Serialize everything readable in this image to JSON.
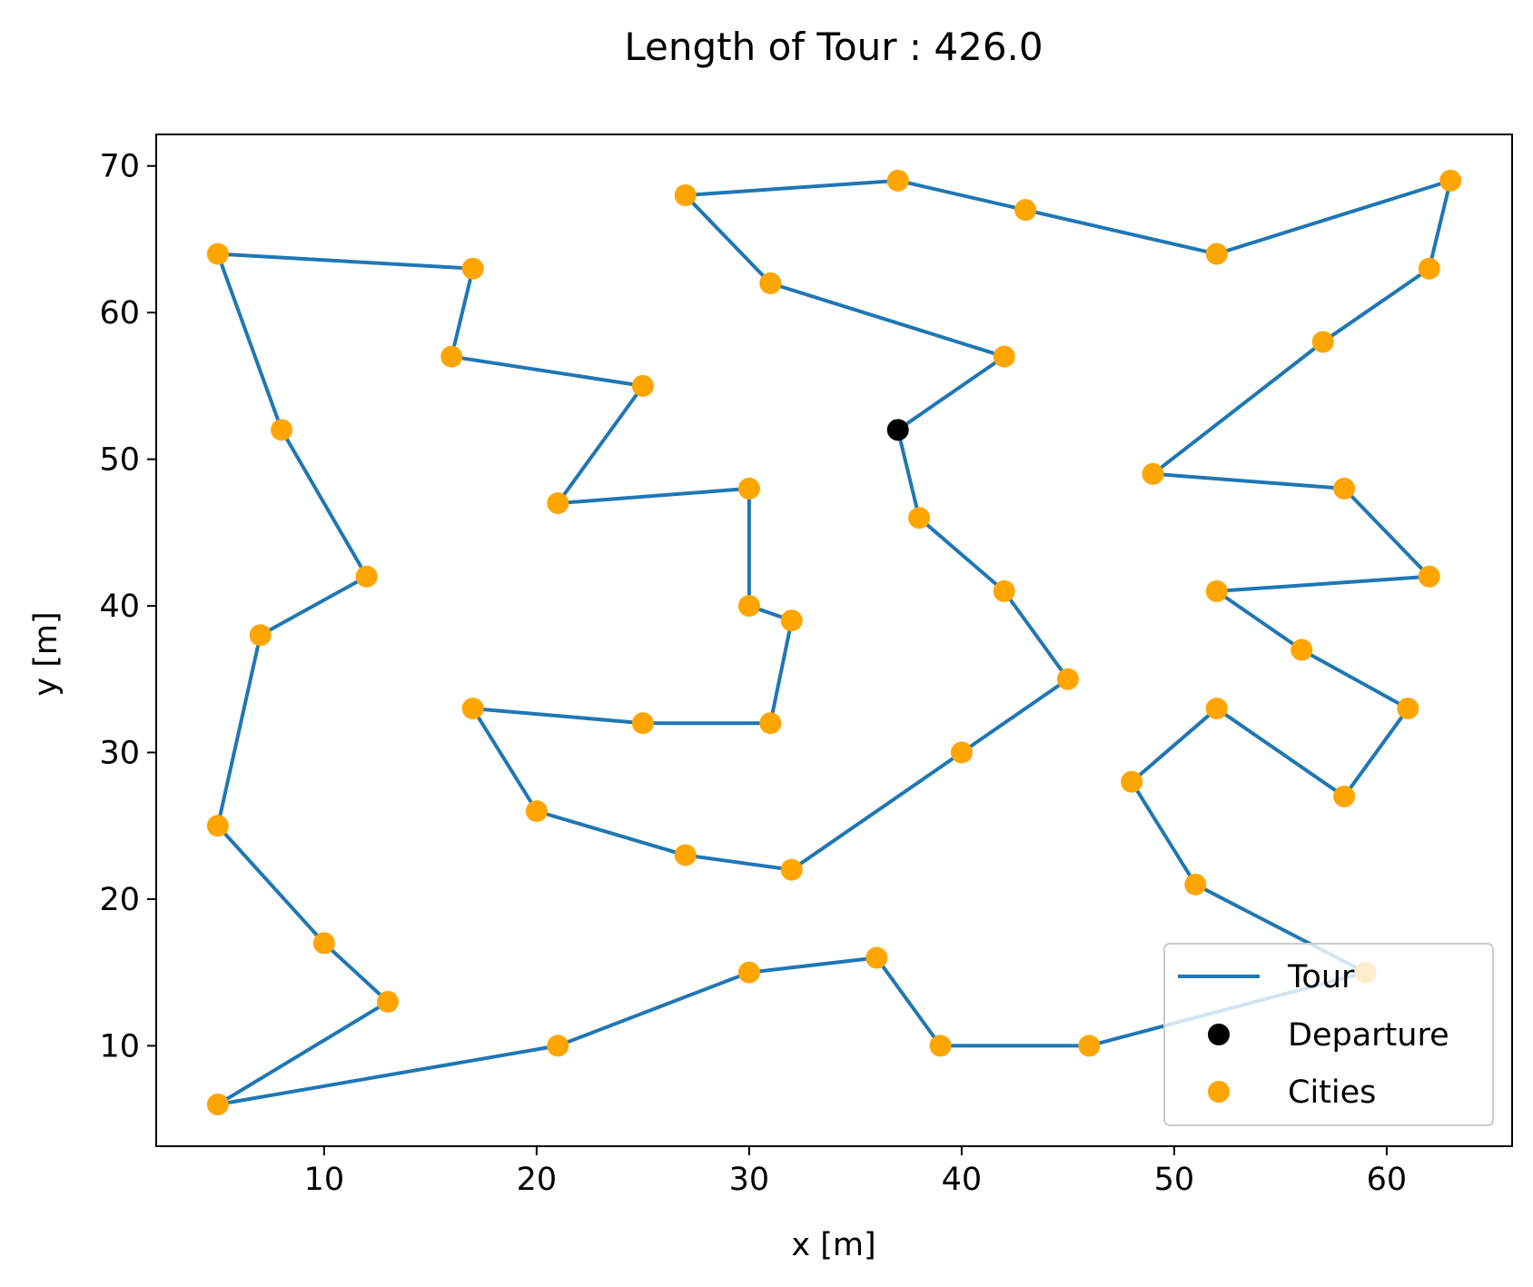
{
  "chart_data": {
    "type": "scatter",
    "title": "Length of Tour : 426.0",
    "xlabel": "x [m]",
    "ylabel": "y [m]",
    "xlim": [
      2.1,
      65.9
    ],
    "ylim": [
      3.15,
      72.15
    ],
    "xticks": [
      10,
      20,
      30,
      40,
      50,
      60
    ],
    "yticks": [
      10,
      20,
      30,
      40,
      50,
      60,
      70
    ],
    "grid": false,
    "legend_position": "lower right",
    "series": [
      {
        "name": "Tour",
        "kind": "line",
        "color": "#1f77b4",
        "points": [
          [
            37,
            52
          ],
          [
            42,
            57
          ],
          [
            31,
            62
          ],
          [
            27,
            68
          ],
          [
            37,
            69
          ],
          [
            43,
            67
          ],
          [
            52,
            64
          ],
          [
            63,
            69
          ],
          [
            62,
            63
          ],
          [
            57,
            58
          ],
          [
            49,
            49
          ],
          [
            58,
            48
          ],
          [
            62,
            42
          ],
          [
            52,
            41
          ],
          [
            56,
            37
          ],
          [
            61,
            33
          ],
          [
            58,
            27
          ],
          [
            52,
            33
          ],
          [
            48,
            28
          ],
          [
            51,
            21
          ],
          [
            59,
            15
          ],
          [
            46,
            10
          ],
          [
            39,
            10
          ],
          [
            36,
            16
          ],
          [
            30,
            15
          ],
          [
            21,
            10
          ],
          [
            5,
            6
          ],
          [
            13,
            13
          ],
          [
            10,
            17
          ],
          [
            5,
            25
          ],
          [
            7,
            38
          ],
          [
            12,
            42
          ],
          [
            8,
            52
          ],
          [
            5,
            64
          ],
          [
            17,
            63
          ],
          [
            16,
            57
          ],
          [
            25,
            55
          ],
          [
            21,
            47
          ],
          [
            30,
            48
          ],
          [
            30,
            40
          ],
          [
            32,
            39
          ],
          [
            31,
            32
          ],
          [
            25,
            32
          ],
          [
            17,
            33
          ],
          [
            20,
            26
          ],
          [
            27,
            23
          ],
          [
            32,
            22
          ],
          [
            40,
            30
          ],
          [
            45,
            35
          ],
          [
            42,
            41
          ],
          [
            38,
            46
          ],
          [
            37,
            52
          ]
        ]
      },
      {
        "name": "Departure",
        "kind": "scatter",
        "color": "#000000",
        "points": [
          [
            37,
            52
          ]
        ]
      },
      {
        "name": "Cities",
        "kind": "scatter",
        "color": "#ffa500",
        "points": [
          [
            42,
            57
          ],
          [
            31,
            62
          ],
          [
            27,
            68
          ],
          [
            37,
            69
          ],
          [
            43,
            67
          ],
          [
            52,
            64
          ],
          [
            63,
            69
          ],
          [
            62,
            63
          ],
          [
            57,
            58
          ],
          [
            49,
            49
          ],
          [
            58,
            48
          ],
          [
            62,
            42
          ],
          [
            52,
            41
          ],
          [
            56,
            37
          ],
          [
            61,
            33
          ],
          [
            58,
            27
          ],
          [
            52,
            33
          ],
          [
            48,
            28
          ],
          [
            51,
            21
          ],
          [
            59,
            15
          ],
          [
            46,
            10
          ],
          [
            39,
            10
          ],
          [
            36,
            16
          ],
          [
            30,
            15
          ],
          [
            21,
            10
          ],
          [
            5,
            6
          ],
          [
            13,
            13
          ],
          [
            10,
            17
          ],
          [
            5,
            25
          ],
          [
            7,
            38
          ],
          [
            12,
            42
          ],
          [
            8,
            52
          ],
          [
            5,
            64
          ],
          [
            17,
            63
          ],
          [
            16,
            57
          ],
          [
            25,
            55
          ],
          [
            21,
            47
          ],
          [
            30,
            48
          ],
          [
            30,
            40
          ],
          [
            32,
            39
          ],
          [
            31,
            32
          ],
          [
            25,
            32
          ],
          [
            17,
            33
          ],
          [
            20,
            26
          ],
          [
            27,
            23
          ],
          [
            32,
            22
          ],
          [
            40,
            30
          ],
          [
            45,
            35
          ],
          [
            42,
            41
          ],
          [
            38,
            46
          ]
        ]
      }
    ]
  }
}
